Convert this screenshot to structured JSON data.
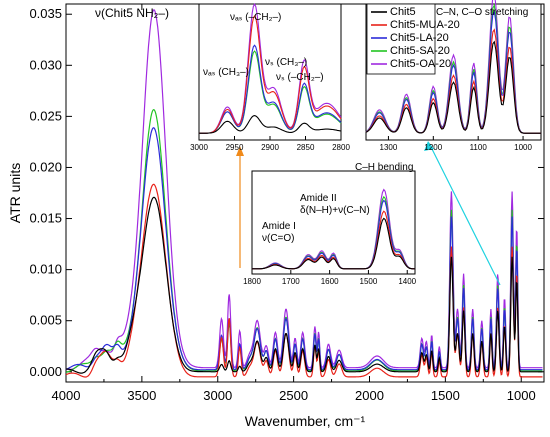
{
  "chart_data": {
    "type": "line",
    "xlabel": "Wavenumber, cm⁻¹",
    "ylabel": "ATR units",
    "xlim": [
      4000,
      850
    ],
    "ylim": [
      -0.001,
      0.036
    ],
    "xticks": [
      "4000",
      "3500",
      "3000",
      "2500",
      "2000",
      "1500",
      "1000"
    ],
    "yticks": [
      "0.000",
      "0.005",
      "0.010",
      "0.015",
      "0.020",
      "0.025",
      "0.030",
      "0.035"
    ],
    "series": [
      {
        "name": "Chit5",
        "color": "#000000",
        "peak": 0.017
      },
      {
        "name": "Chit5-MUA-20",
        "color": "#e8231a",
        "peak": 0.0187
      },
      {
        "name": "Chit5-LA-20",
        "color": "#2b2bd9",
        "peak": 0.0233
      },
      {
        "name": "Chit5-SA-20",
        "color": "#22c422",
        "peak": 0.025
      },
      {
        "name": "Chit5-OA-20",
        "color": "#a02ae0",
        "peak": 0.0345
      }
    ],
    "annotations": {
      "nh_peak": "ν(Chit5 NH₂–)",
      "amide1_line1": "Amide I",
      "amide1_line2": "ν(C=O)",
      "amide2_line1": "Amide II",
      "amide2_line2": "δ(N–H)+ν(C–N)",
      "ch_bending": "C–H bending",
      "cn_co": "C–N, C–O stretching",
      "vas_ch2": "νₐₛ (–CH₂–)",
      "vas_ch3": "νₐₛ (CH₃–)",
      "vs_ch3": "νₛ (CH₃–)",
      "vs_ch2": "νₛ (–CH₂–)"
    },
    "insets": [
      {
        "id": "ch-stretch",
        "xticks": [
          "3000",
          "2950",
          "2900",
          "2850",
          "2800"
        ]
      },
      {
        "id": "amide",
        "xticks": [
          "1800",
          "1700",
          "1600",
          "1500",
          "1400"
        ]
      },
      {
        "id": "cn-co",
        "xticks": [
          "1300",
          "1200",
          "1100",
          "1000"
        ]
      }
    ],
    "legend_position": "top-right",
    "grid": false
  }
}
